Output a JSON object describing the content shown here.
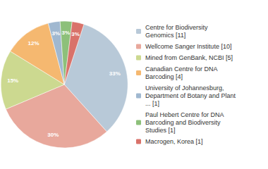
{
  "chart_data": {
    "type": "pie",
    "categories": [
      "Centre for Biodiversity\nGenomics [11]",
      "Wellcome Sanger Institute [10]",
      "Mined from GenBank, NCBI [5]",
      "Canadian Centre for DNA\nBarcoding [4]",
      "University of Johannesburg,\nDepartment of Botany and Plant\n... [1]",
      "Paul Hebert Centre for DNA\nBarcoding and Biodiversity\nStudies [1]",
      "Macrogen, Korea [1]"
    ],
    "values": [
      33,
      30,
      15,
      12,
      3,
      3,
      3
    ],
    "value_labels": [
      "33%",
      "30%",
      "15%",
      "12%",
      "3%",
      "3%",
      "3%"
    ],
    "colors": [
      "#b8c9d8",
      "#e8a89c",
      "#ccd990",
      "#f5b870",
      "#a0b8d0",
      "#8dc07a",
      "#d9726a"
    ],
    "data_labels": true,
    "legend": "right"
  }
}
